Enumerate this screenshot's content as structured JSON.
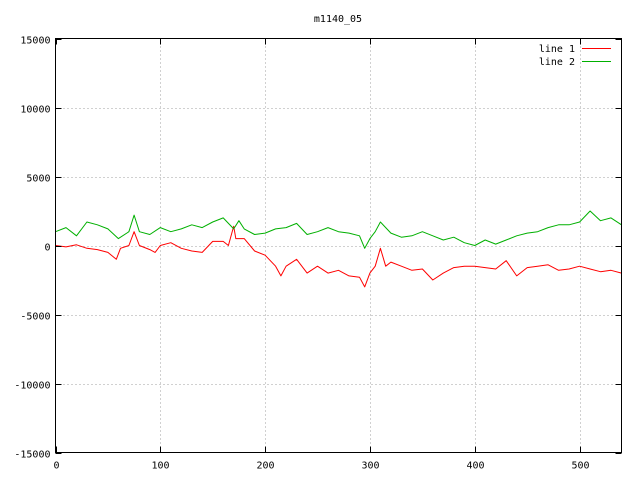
{
  "chart_data": {
    "type": "line",
    "title": "m1140_05",
    "xlabel": "",
    "ylabel": "",
    "xlim": [
      0,
      540
    ],
    "ylim": [
      -15000,
      15000
    ],
    "xticks": [
      0,
      100,
      200,
      300,
      400,
      500
    ],
    "yticks": [
      -15000,
      -10000,
      -5000,
      0,
      5000,
      10000,
      15000
    ],
    "grid": true,
    "legend_position": "top-right",
    "series": [
      {
        "name": "line 1",
        "color": "#ff0000",
        "points": [
          [
            0,
            0
          ],
          [
            10,
            -100
          ],
          [
            20,
            50
          ],
          [
            30,
            -200
          ],
          [
            40,
            -300
          ],
          [
            50,
            -500
          ],
          [
            58,
            -1000
          ],
          [
            62,
            -200
          ],
          [
            70,
            0
          ],
          [
            75,
            1000
          ],
          [
            80,
            0
          ],
          [
            90,
            -300
          ],
          [
            95,
            -500
          ],
          [
            100,
            0
          ],
          [
            110,
            200
          ],
          [
            120,
            -200
          ],
          [
            130,
            -400
          ],
          [
            140,
            -500
          ],
          [
            150,
            300
          ],
          [
            160,
            300
          ],
          [
            165,
            0
          ],
          [
            170,
            1400
          ],
          [
            172,
            500
          ],
          [
            180,
            500
          ],
          [
            190,
            -400
          ],
          [
            200,
            -700
          ],
          [
            210,
            -1500
          ],
          [
            215,
            -2200
          ],
          [
            220,
            -1500
          ],
          [
            230,
            -1000
          ],
          [
            240,
            -2000
          ],
          [
            250,
            -1500
          ],
          [
            260,
            -2000
          ],
          [
            270,
            -1800
          ],
          [
            280,
            -2200
          ],
          [
            290,
            -2300
          ],
          [
            295,
            -3000
          ],
          [
            300,
            -2000
          ],
          [
            305,
            -1500
          ],
          [
            310,
            -200
          ],
          [
            315,
            -1500
          ],
          [
            320,
            -1200
          ],
          [
            330,
            -1500
          ],
          [
            340,
            -1800
          ],
          [
            350,
            -1700
          ],
          [
            360,
            -2500
          ],
          [
            370,
            -2000
          ],
          [
            380,
            -1600
          ],
          [
            390,
            -1500
          ],
          [
            400,
            -1500
          ],
          [
            410,
            -1600
          ],
          [
            420,
            -1700
          ],
          [
            430,
            -1100
          ],
          [
            440,
            -2200
          ],
          [
            450,
            -1600
          ],
          [
            460,
            -1500
          ],
          [
            470,
            -1400
          ],
          [
            480,
            -1800
          ],
          [
            490,
            -1700
          ],
          [
            500,
            -1500
          ],
          [
            510,
            -1700
          ],
          [
            520,
            -1900
          ],
          [
            530,
            -1800
          ],
          [
            540,
            -2000
          ]
        ]
      },
      {
        "name": "line 2",
        "color": "#00b000",
        "points": [
          [
            0,
            1000
          ],
          [
            10,
            1300
          ],
          [
            20,
            700
          ],
          [
            30,
            1700
          ],
          [
            40,
            1500
          ],
          [
            50,
            1200
          ],
          [
            60,
            500
          ],
          [
            70,
            1000
          ],
          [
            75,
            2200
          ],
          [
            80,
            1000
          ],
          [
            90,
            800
          ],
          [
            100,
            1300
          ],
          [
            110,
            1000
          ],
          [
            120,
            1200
          ],
          [
            130,
            1500
          ],
          [
            140,
            1300
          ],
          [
            150,
            1700
          ],
          [
            160,
            2000
          ],
          [
            170,
            1200
          ],
          [
            175,
            1800
          ],
          [
            180,
            1200
          ],
          [
            190,
            800
          ],
          [
            200,
            900
          ],
          [
            210,
            1200
          ],
          [
            220,
            1300
          ],
          [
            230,
            1600
          ],
          [
            240,
            800
          ],
          [
            250,
            1000
          ],
          [
            260,
            1300
          ],
          [
            270,
            1000
          ],
          [
            280,
            900
          ],
          [
            290,
            700
          ],
          [
            295,
            -200
          ],
          [
            300,
            500
          ],
          [
            305,
            1000
          ],
          [
            310,
            1700
          ],
          [
            315,
            1300
          ],
          [
            320,
            900
          ],
          [
            330,
            600
          ],
          [
            340,
            700
          ],
          [
            350,
            1000
          ],
          [
            360,
            700
          ],
          [
            370,
            400
          ],
          [
            380,
            600
          ],
          [
            390,
            200
          ],
          [
            400,
            0
          ],
          [
            410,
            400
          ],
          [
            420,
            100
          ],
          [
            430,
            400
          ],
          [
            440,
            700
          ],
          [
            450,
            900
          ],
          [
            460,
            1000
          ],
          [
            470,
            1300
          ],
          [
            480,
            1500
          ],
          [
            490,
            1500
          ],
          [
            500,
            1700
          ],
          [
            510,
            2500
          ],
          [
            520,
            1800
          ],
          [
            530,
            2000
          ],
          [
            540,
            1500
          ]
        ]
      }
    ]
  }
}
